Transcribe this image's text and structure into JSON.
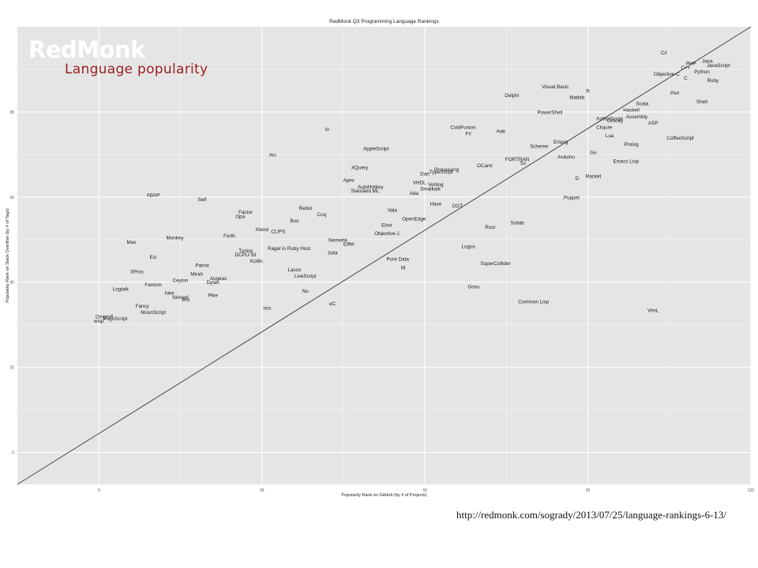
{
  "chart_data": {
    "type": "scatter",
    "title": "RedMonk Q3 Programming Language Rankings",
    "xlabel": "Popularity Rank on GitHub (by # of Projects)",
    "ylabel": "Popularity Rank on Stack Overflow (by # of Tags)",
    "xlim": [
      -15,
      120
    ],
    "ylim": [
      -7.5,
      100
    ],
    "x_ticks": [
      0,
      30,
      60,
      90,
      120
    ],
    "y_ticks": [
      0,
      20,
      40,
      60,
      80
    ],
    "grid": true,
    "trend_line": {
      "from": [
        -15,
        -7.5
      ],
      "to": [
        120,
        100
      ]
    },
    "points": [
      {
        "label": "C#",
        "x": 104,
        "y": 94
      },
      {
        "label": "Java",
        "x": 112,
        "y": 92
      },
      {
        "label": "PHP",
        "x": 109,
        "y": 91.5
      },
      {
        "label": "JavaScript",
        "x": 114,
        "y": 91
      },
      {
        "label": "C++",
        "x": 108,
        "y": 90.5
      },
      {
        "label": "Python",
        "x": 111,
        "y": 89.5
      },
      {
        "label": "Objective-C",
        "x": 104.5,
        "y": 89
      },
      {
        "label": "C",
        "x": 108,
        "y": 88
      },
      {
        "label": "Ruby",
        "x": 113,
        "y": 87.5
      },
      {
        "label": "Visual Basic",
        "x": 84,
        "y": 86
      },
      {
        "label": "R",
        "x": 90,
        "y": 85
      },
      {
        "label": "Perl",
        "x": 106,
        "y": 84.5
      },
      {
        "label": "Delphi",
        "x": 76,
        "y": 84
      },
      {
        "label": "Matlab",
        "x": 88,
        "y": 83.5
      },
      {
        "label": "Shell",
        "x": 111,
        "y": 82.5
      },
      {
        "label": "Scala",
        "x": 100,
        "y": 82
      },
      {
        "label": "Haskell",
        "x": 98,
        "y": 80.5
      },
      {
        "label": "PowerShell",
        "x": 83,
        "y": 80
      },
      {
        "label": "Assembly",
        "x": 99,
        "y": 79
      },
      {
        "label": "ActionScript",
        "x": 94,
        "y": 78.5
      },
      {
        "label": "Groovy",
        "x": 95,
        "y": 78
      },
      {
        "label": "ASP",
        "x": 102,
        "y": 77.5
      },
      {
        "label": "ColdFusion",
        "x": 67,
        "y": 76.5
      },
      {
        "label": "Clojure",
        "x": 93,
        "y": 76.5
      },
      {
        "label": "Io",
        "x": 42,
        "y": 76
      },
      {
        "label": "Awk",
        "x": 74,
        "y": 75.5
      },
      {
        "label": "F#",
        "x": 68,
        "y": 75
      },
      {
        "label": "Lua",
        "x": 94,
        "y": 74.5
      },
      {
        "label": "CoffeeScript",
        "x": 107,
        "y": 74
      },
      {
        "label": "Erlang",
        "x": 85,
        "y": 73
      },
      {
        "label": "Prolog",
        "x": 98,
        "y": 72.5
      },
      {
        "label": "Scheme",
        "x": 81,
        "y": 72
      },
      {
        "label": "AppleScript",
        "x": 51,
        "y": 71.5
      },
      {
        "label": "Go",
        "x": 91,
        "y": 70.5
      },
      {
        "label": "Arc",
        "x": 32,
        "y": 70
      },
      {
        "label": "Arduino",
        "x": 86,
        "y": 69.5
      },
      {
        "label": "FORTRAN",
        "x": 77,
        "y": 69
      },
      {
        "label": "Emacs Lisp",
        "x": 97,
        "y": 68.5
      },
      {
        "label": "Tcl",
        "x": 78,
        "y": 68
      },
      {
        "label": "OCaml",
        "x": 71,
        "y": 67.5
      },
      {
        "label": "XQuery",
        "x": 48,
        "y": 67
      },
      {
        "label": "Processing",
        "x": 64,
        "y": 66.5
      },
      {
        "label": "TypeScript",
        "x": 63,
        "y": 66
      },
      {
        "label": "Dart",
        "x": 60,
        "y": 65.5
      },
      {
        "label": "Racket",
        "x": 91,
        "y": 65
      },
      {
        "label": "D",
        "x": 88,
        "y": 64.5
      },
      {
        "label": "Apex",
        "x": 46,
        "y": 64
      },
      {
        "label": "VHDL",
        "x": 59,
        "y": 63.5
      },
      {
        "label": "Verilog",
        "x": 62,
        "y": 63
      },
      {
        "label": "AutoHotkey",
        "x": 50,
        "y": 62.5
      },
      {
        "label": "Smalltalk",
        "x": 61,
        "y": 62
      },
      {
        "label": "Standard ML",
        "x": 49,
        "y": 61.5
      },
      {
        "label": "Ada",
        "x": 58,
        "y": 61
      },
      {
        "label": "ABAP",
        "x": 10,
        "y": 60.5
      },
      {
        "label": "Puppet",
        "x": 87,
        "y": 60
      },
      {
        "label": "Self",
        "x": 19,
        "y": 59.5
      },
      {
        "label": "Haxe",
        "x": 62,
        "y": 58.5
      },
      {
        "label": "DOT",
        "x": 66,
        "y": 58
      },
      {
        "label": "Rebol",
        "x": 38,
        "y": 57.5
      },
      {
        "label": "Vala",
        "x": 54,
        "y": 57
      },
      {
        "label": "Factor",
        "x": 27,
        "y": 56.5
      },
      {
        "label": "Coq",
        "x": 41,
        "y": 56
      },
      {
        "label": "Opa",
        "x": 26,
        "y": 55.5
      },
      {
        "label": "OpenEdge",
        "x": 58,
        "y": 55
      },
      {
        "label": "Boo",
        "x": 36,
        "y": 54.5
      },
      {
        "label": "Scilab",
        "x": 77,
        "y": 54
      },
      {
        "label": "Elixir",
        "x": 53,
        "y": 53.5
      },
      {
        "label": "Rust",
        "x": 72,
        "y": 53
      },
      {
        "label": "Xtend",
        "x": 30,
        "y": 52.5
      },
      {
        "label": "CLIPS",
        "x": 33,
        "y": 52
      },
      {
        "label": "Objective-J",
        "x": 53,
        "y": 51.5
      },
      {
        "label": "Forth",
        "x": 24,
        "y": 51
      },
      {
        "label": "Monkey",
        "x": 14,
        "y": 50.5
      },
      {
        "label": "Nemerle",
        "x": 44,
        "y": 50
      },
      {
        "label": "Max",
        "x": 6,
        "y": 49.5
      },
      {
        "label": "Eiffel",
        "x": 46,
        "y": 49
      },
      {
        "label": "Logos",
        "x": 68,
        "y": 48.5
      },
      {
        "label": "Ragel in Ruby Host",
        "x": 35,
        "y": 48
      },
      {
        "label": "Turing",
        "x": 27,
        "y": 47.5
      },
      {
        "label": "Julia",
        "x": 43,
        "y": 47
      },
      {
        "label": "DCPU-16",
        "x": 27,
        "y": 46.5
      },
      {
        "label": "Ecl",
        "x": 10,
        "y": 46
      },
      {
        "label": "Pure Data",
        "x": 55,
        "y": 45.5
      },
      {
        "label": "Kotlin",
        "x": 29,
        "y": 45
      },
      {
        "label": "SuperCollider",
        "x": 73,
        "y": 44.5
      },
      {
        "label": "Parrot",
        "x": 19,
        "y": 44
      },
      {
        "label": "M",
        "x": 56,
        "y": 43.5
      },
      {
        "label": "Lasso",
        "x": 36,
        "y": 43
      },
      {
        "label": "XProc",
        "x": 7,
        "y": 42.5
      },
      {
        "label": "Mirah",
        "x": 18,
        "y": 42
      },
      {
        "label": "LiveScript",
        "x": 38,
        "y": 41.5
      },
      {
        "label": "Augeas",
        "x": 22,
        "y": 41
      },
      {
        "label": "Ceylon",
        "x": 15,
        "y": 40.5
      },
      {
        "label": "Dylan",
        "x": 21,
        "y": 40
      },
      {
        "label": "Fantom",
        "x": 10,
        "y": 39.5
      },
      {
        "label": "Gosu",
        "x": 69,
        "y": 39
      },
      {
        "label": "Logtalk",
        "x": 4,
        "y": 38.5
      },
      {
        "label": "Nu",
        "x": 38,
        "y": 38
      },
      {
        "label": "Ioke",
        "x": 13,
        "y": 37.5
      },
      {
        "label": "Pike",
        "x": 21,
        "y": 37
      },
      {
        "label": "Nimrod",
        "x": 15,
        "y": 36.5
      },
      {
        "label": "Bro",
        "x": 16,
        "y": 36
      },
      {
        "label": "Common Lisp",
        "x": 80,
        "y": 35.5
      },
      {
        "label": "eC",
        "x": 43,
        "y": 35
      },
      {
        "label": "Fancy",
        "x": 8,
        "y": 34.5
      },
      {
        "label": "ooc",
        "x": 31,
        "y": 34
      },
      {
        "label": "VimL",
        "x": 102,
        "y": 33.5
      },
      {
        "label": "MoonScript",
        "x": 10,
        "y": 33
      },
      {
        "label": "Omgrofl",
        "x": 1,
        "y": 32
      },
      {
        "label": "PogoScript",
        "x": 3,
        "y": 31.5
      },
      {
        "label": "wisp",
        "x": 0,
        "y": 31
      }
    ]
  },
  "overlay": {
    "logo_text": "RedMonk",
    "subtitle": "Language popularity",
    "source_url": "http://redmonk.com/sogrady/2013/07/25/language-rankings-6-13/"
  },
  "colors": {
    "panel_bg": "#e5e5e5",
    "grid_line": "#f6f6f6",
    "point_label": "#1a1a1a",
    "trend_line": "#444444",
    "subtitle": "#9b1c1c"
  }
}
